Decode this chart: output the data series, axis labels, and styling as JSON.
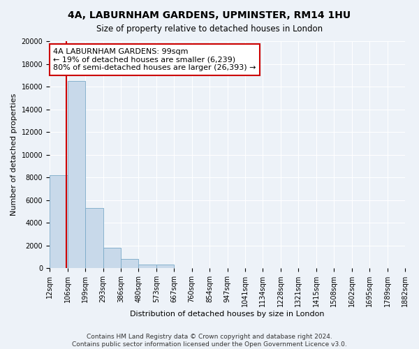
{
  "title": "4A, LABURNHAM GARDENS, UPMINSTER, RM14 1HU",
  "subtitle": "Size of property relative to detached houses in London",
  "xlabel": "Distribution of detached houses by size in London",
  "ylabel": "Number of detached properties",
  "bar_color": "#c8d9ea",
  "bar_edge_color": "#7aaac8",
  "annotation_box_edge": "#cc0000",
  "red_line_color": "#cc0000",
  "property_line": "4A LABURNHAM GARDENS: 99sqm",
  "annotation_line1": "← 19% of detached houses are smaller (6,239)",
  "annotation_line2": "80% of semi-detached houses are larger (26,393) →",
  "footnote1": "Contains HM Land Registry data © Crown copyright and database right 2024.",
  "footnote2": "Contains public sector information licensed under the Open Government Licence v3.0.",
  "bins": [
    12,
    106,
    199,
    293,
    386,
    480,
    573,
    667,
    760,
    854,
    947,
    1041,
    1134,
    1228,
    1321,
    1415,
    1508,
    1602,
    1695,
    1789,
    1882
  ],
  "counts": [
    8200,
    16500,
    5300,
    1800,
    800,
    300,
    300,
    0,
    0,
    0,
    0,
    0,
    0,
    0,
    0,
    0,
    0,
    0,
    0,
    0
  ],
  "property_sqm": 99,
  "ylim": [
    0,
    20000
  ],
  "yticks": [
    0,
    2000,
    4000,
    6000,
    8000,
    10000,
    12000,
    14000,
    16000,
    18000,
    20000
  ],
  "background_color": "#edf2f8",
  "title_fontsize": 10,
  "subtitle_fontsize": 8.5,
  "axis_label_fontsize": 8,
  "tick_fontsize": 7,
  "footnote_fontsize": 6.5,
  "annotation_fontsize": 8
}
